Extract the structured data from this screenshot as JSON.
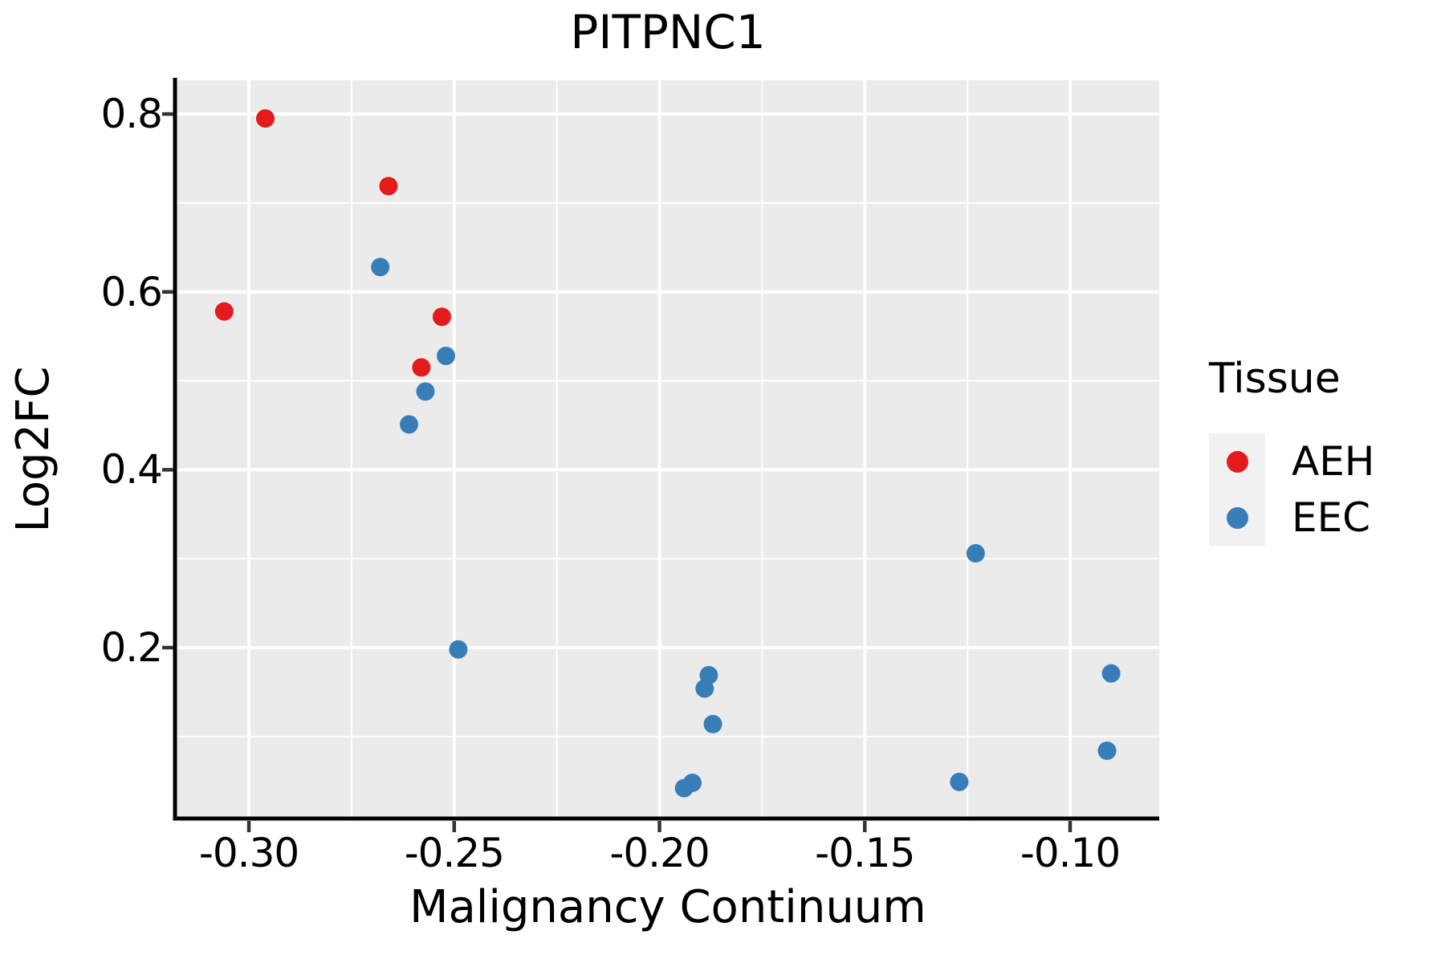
{
  "title": "PITPNC1",
  "axes": {
    "x_label": "Malignancy Continuum",
    "y_label": "Log2FC"
  },
  "legend": {
    "title": "Tissue",
    "items": [
      {
        "label": "AEH",
        "color": "#E41A1C"
      },
      {
        "label": "EEC",
        "color": "#377EB8"
      }
    ]
  },
  "colors": {
    "panel_background": "#EBEBEB",
    "grid_major": "#FFFFFF",
    "grid_minor": "#FFFFFF",
    "axis_spine": "#000000",
    "tick_mark": "#333333",
    "legend_key_background": "#F1F1F1",
    "aeh_point": "#E41A1C",
    "eec_point": "#377EB8",
    "text": "#000000"
  },
  "chart_data": {
    "type": "scatter",
    "title": "PITPNC1",
    "xlabel": "Malignancy Continuum",
    "ylabel": "Log2FC",
    "xlim": [
      -0.3176,
      -0.0783
    ],
    "ylim": [
      0.0096,
      0.838
    ],
    "grid": true,
    "legend_position": "right",
    "x_major_ticks": [
      {
        "value": -0.3,
        "label": "-0.30"
      },
      {
        "value": -0.25,
        "label": "-0.25"
      },
      {
        "value": -0.2,
        "label": "-0.20"
      },
      {
        "value": -0.15,
        "label": "-0.15"
      },
      {
        "value": -0.1,
        "label": "-0.10"
      }
    ],
    "y_major_ticks": [
      {
        "value": 0.2,
        "label": "0.2"
      },
      {
        "value": 0.4,
        "label": "0.4"
      },
      {
        "value": 0.6,
        "label": "0.6"
      },
      {
        "value": 0.8,
        "label": "0.8"
      }
    ],
    "x_minor_ticks": [
      -0.275,
      -0.225,
      -0.175,
      -0.125
    ],
    "y_minor_ticks": [
      0.1,
      0.3,
      0.5,
      0.7
    ],
    "series": [
      {
        "name": "AEH",
        "color": "#E41A1C",
        "points": [
          [
            -0.296,
            0.795
          ],
          [
            -0.266,
            0.719
          ],
          [
            -0.306,
            0.578
          ],
          [
            -0.253,
            0.572
          ],
          [
            -0.258,
            0.515
          ]
        ]
      },
      {
        "name": "EEC",
        "color": "#377EB8",
        "points": [
          [
            -0.268,
            0.628
          ],
          [
            -0.252,
            0.528
          ],
          [
            -0.257,
            0.488
          ],
          [
            -0.261,
            0.451
          ],
          [
            -0.249,
            0.198
          ],
          [
            -0.188,
            0.169
          ],
          [
            -0.189,
            0.154
          ],
          [
            -0.187,
            0.114
          ],
          [
            -0.192,
            0.048
          ],
          [
            -0.194,
            0.042
          ],
          [
            -0.123,
            0.306
          ],
          [
            -0.127,
            0.049
          ],
          [
            -0.09,
            0.171
          ],
          [
            -0.091,
            0.084
          ]
        ]
      }
    ]
  }
}
